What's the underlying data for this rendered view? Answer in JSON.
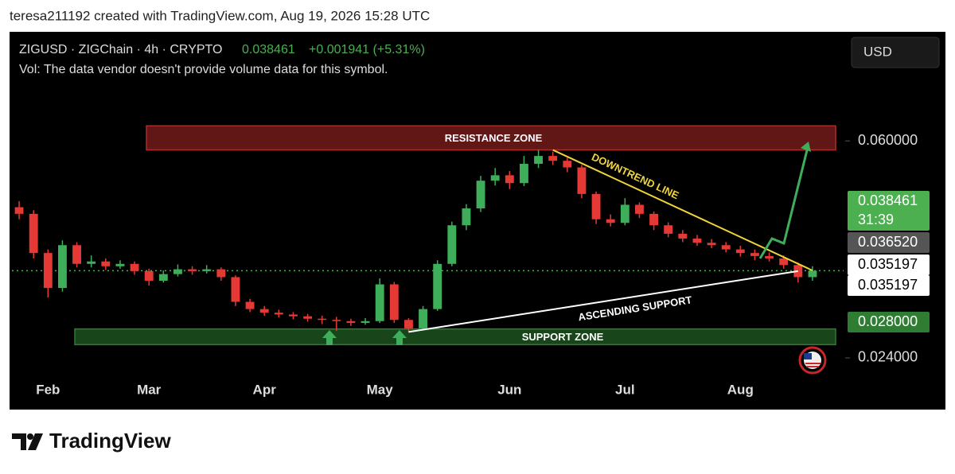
{
  "header": {
    "credit": "teresa211192 created with TradingView.com, Aug 19, 2026 15:28 UTC"
  },
  "footer": {
    "brand": "TradingView"
  },
  "chart_data": {
    "type": "candlestick",
    "symbol": "ZIGUSD · ZIGChain · 4h · CRYPTO",
    "last": "0.038461",
    "change": "+0.001941 (+5.31%)",
    "volume_note": "Vol: The data vendor doesn't provide volume data for this symbol.",
    "currency": "USD",
    "countdown": "31:39",
    "up_color": "#3fae5a",
    "down_color": "#e53935",
    "categories": [
      null,
      null,
      "Feb",
      null,
      null,
      null,
      null,
      null,
      null,
      "Mar",
      null,
      null,
      null,
      null,
      null,
      null,
      null,
      "Apr",
      null,
      null,
      null,
      null,
      null,
      null,
      null,
      "May",
      null,
      null,
      null,
      null,
      null,
      null,
      null,
      null,
      "Jun",
      null,
      null,
      null,
      null,
      null,
      null,
      null,
      "Jul",
      null,
      null,
      null,
      null,
      null,
      null,
      null,
      "Aug",
      null,
      null,
      null,
      null,
      null
    ],
    "ohlc": [
      [
        0.049,
        0.05,
        0.047,
        0.0479
      ],
      [
        0.0479,
        0.0485,
        0.0405,
        0.0414
      ],
      [
        0.0414,
        0.042,
        0.034,
        0.0356
      ],
      [
        0.0356,
        0.0435,
        0.035,
        0.0427
      ],
      [
        0.0427,
        0.0432,
        0.039,
        0.0396
      ],
      [
        0.0396,
        0.041,
        0.039,
        0.04
      ],
      [
        0.04,
        0.0405,
        0.0386,
        0.0392
      ],
      [
        0.0392,
        0.0402,
        0.0388,
        0.0396
      ],
      [
        0.0396,
        0.04,
        0.0378,
        0.0384
      ],
      [
        0.0384,
        0.0388,
        0.036,
        0.0368
      ],
      [
        0.0368,
        0.0385,
        0.0365,
        0.0379
      ],
      [
        0.0379,
        0.0395,
        0.0375,
        0.0387
      ],
      [
        0.0387,
        0.0392,
        0.0378,
        0.0384
      ],
      [
        0.0384,
        0.0394,
        0.038,
        0.0387
      ],
      [
        0.0387,
        0.039,
        0.0368,
        0.0374
      ],
      [
        0.0374,
        0.0377,
        0.0326,
        0.0333
      ],
      [
        0.0333,
        0.0338,
        0.0316,
        0.0321
      ],
      [
        0.0321,
        0.0326,
        0.031,
        0.0315
      ],
      [
        0.0315,
        0.032,
        0.0307,
        0.0312
      ],
      [
        0.0312,
        0.0316,
        0.0304,
        0.0309
      ],
      [
        0.0309,
        0.0313,
        0.03,
        0.0305
      ],
      [
        0.0305,
        0.031,
        0.0296,
        0.0303
      ],
      [
        0.0303,
        0.0308,
        0.0285,
        0.0301
      ],
      [
        0.0301,
        0.0305,
        0.0293,
        0.0298
      ],
      [
        0.0298,
        0.0306,
        0.0295,
        0.0301
      ],
      [
        0.0301,
        0.0372,
        0.0298,
        0.0362
      ],
      [
        0.0362,
        0.0366,
        0.0298,
        0.0303
      ],
      [
        0.0303,
        0.0306,
        0.0283,
        0.0289
      ],
      [
        0.0289,
        0.0326,
        0.0286,
        0.0321
      ],
      [
        0.0321,
        0.0402,
        0.0318,
        0.0396
      ],
      [
        0.0396,
        0.0466,
        0.0392,
        0.046
      ],
      [
        0.046,
        0.0495,
        0.0452,
        0.0488
      ],
      [
        0.0488,
        0.0542,
        0.0482,
        0.0534
      ],
      [
        0.0534,
        0.0555,
        0.0526,
        0.0543
      ],
      [
        0.0543,
        0.055,
        0.052,
        0.053
      ],
      [
        0.053,
        0.0575,
        0.0525,
        0.0562
      ],
      [
        0.0562,
        0.0585,
        0.0555,
        0.0575
      ],
      [
        0.0575,
        0.0582,
        0.056,
        0.0567
      ],
      [
        0.0567,
        0.0572,
        0.0548,
        0.0556
      ],
      [
        0.0556,
        0.056,
        0.0505,
        0.0512
      ],
      [
        0.0512,
        0.0516,
        0.0462,
        0.047
      ],
      [
        0.047,
        0.0478,
        0.0458,
        0.0464
      ],
      [
        0.0464,
        0.0505,
        0.046,
        0.0494
      ],
      [
        0.0494,
        0.0498,
        0.0472,
        0.0479
      ],
      [
        0.0479,
        0.0483,
        0.0452,
        0.046
      ],
      [
        0.046,
        0.0465,
        0.044,
        0.0446
      ],
      [
        0.0446,
        0.0452,
        0.0432,
        0.0438
      ],
      [
        0.0438,
        0.0444,
        0.0426,
        0.0431
      ],
      [
        0.0431,
        0.0437,
        0.0422,
        0.0427
      ],
      [
        0.0427,
        0.0432,
        0.0415,
        0.042
      ],
      [
        0.042,
        0.0426,
        0.0408,
        0.0414
      ],
      [
        0.0414,
        0.042,
        0.0402,
        0.0409
      ],
      [
        0.0409,
        0.0415,
        0.04,
        0.0405
      ],
      [
        0.0405,
        0.041,
        0.0388,
        0.0394
      ],
      [
        0.0394,
        0.0398,
        0.0365,
        0.0374
      ],
      [
        0.0374,
        0.0392,
        0.0368,
        0.038461
      ]
    ],
    "ylim": [
      0.0207,
      0.0781
    ],
    "yticks": [
      {
        "value": 0.06,
        "label": "0.060000"
      },
      {
        "value": 0.024,
        "label": "0.024000"
      }
    ],
    "price_labels": [
      {
        "value": 0.038461,
        "label": "0.038461"
      },
      {
        "value": 0.03652,
        "label": "0.036520"
      },
      {
        "value": 0.035197,
        "label": "0.035197"
      },
      {
        "value": 0.035197,
        "label": "0.035197"
      },
      {
        "value": 0.028,
        "label": "0.028000"
      }
    ],
    "zones": [
      {
        "label": "RESISTANCE ZONE",
        "range": [
          0.0585,
          0.0625
        ],
        "color": "#b22a2a"
      },
      {
        "label": "SUPPORT ZONE",
        "range": [
          0.0262,
          0.0288
        ],
        "color": "#2e7d32"
      }
    ],
    "trendlines": [
      {
        "label": "DOWNTREND LINE",
        "start": [
          37,
          0.0585
        ],
        "end": [
          55,
          0.0385
        ],
        "color": "#f0d43a"
      },
      {
        "label": "ASCENDING SUPPORT",
        "start": [
          27,
          0.0283
        ],
        "end": [
          54,
          0.0384
        ],
        "color": "#ffffff"
      }
    ]
  }
}
